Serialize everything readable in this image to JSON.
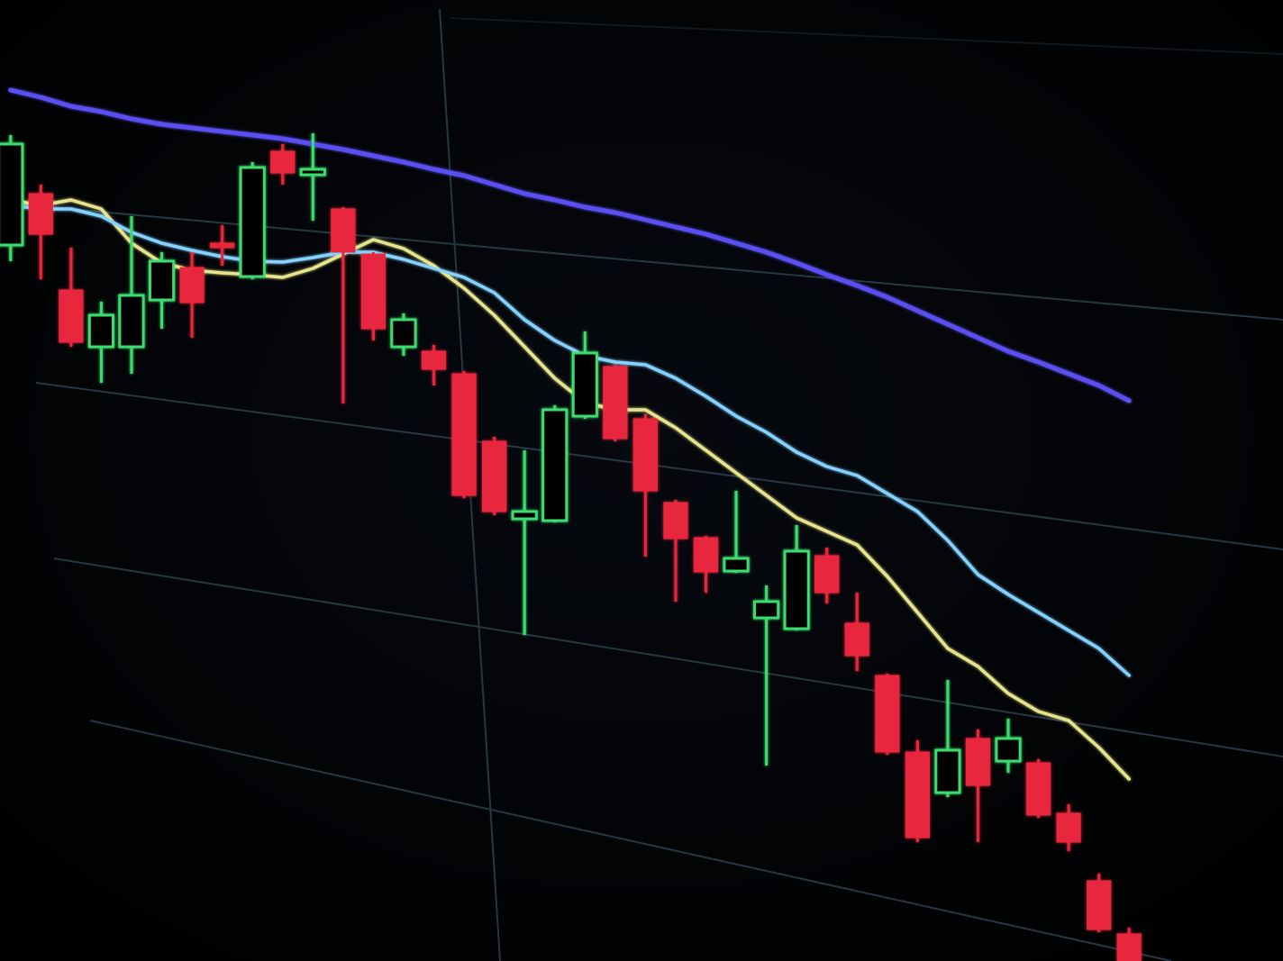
{
  "chart_data": {
    "type": "candlestick",
    "categories": [
      null,
      null,
      null,
      null,
      null,
      null,
      null,
      null,
      null,
      null,
      null,
      null,
      null,
      null,
      null,
      null,
      null,
      null,
      null,
      null,
      null,
      null,
      null,
      null,
      null,
      null,
      null,
      null,
      null,
      null,
      null,
      null,
      null,
      null,
      null,
      null,
      null,
      null
    ],
    "open": [
      795,
      852,
      745,
      682,
      682,
      734,
      770,
      797,
      760,
      899,
      873,
      835,
      785,
      682,
      677,
      652,
      577,
      491,
      489,
      605,
      660,
      602,
      509,
      470,
      433,
      381,
      369,
      450,
      375,
      317,
      232,
      187,
      247,
      222,
      220,
      164,
      89,
      30
    ],
    "high": [
      917,
      862,
      792,
      732,
      827,
      787,
      787,
      817,
      887,
      907,
      919,
      837,
      787,
      719,
      684,
      655,
      582,
      567,
      617,
      699,
      662,
      607,
      512,
      472,
      522,
      417,
      484,
      459,
      409,
      319,
      245,
      312,
      257,
      269,
      224,
      174,
      97,
      37
    ],
    "low": [
      777,
      757,
      682,
      642,
      652,
      702,
      692,
      772,
      757,
      862,
      822,
      619,
      689,
      672,
      639,
      514,
      495,
      362,
      487,
      602,
      577,
      449,
      399,
      409,
      431,
      217,
      367,
      397,
      322,
      229,
      132,
      182,
      132,
      209,
      159,
      122,
      32,
      0
    ],
    "close": [
      907,
      807,
      687,
      717,
      739,
      777,
      731,
      792,
      881,
      875,
      879,
      787,
      702,
      712,
      657,
      517,
      499,
      499,
      612,
      675,
      580,
      522,
      469,
      432,
      447,
      399,
      455,
      409,
      339,
      232,
      137,
      234,
      195,
      247,
      162,
      132,
      35,
      0
    ],
    "up_color": "#3ddc6e",
    "down_color": "#e8283c",
    "series": [
      {
        "color": "#e6e48c",
        "values": [
          845,
          839,
          845,
          835,
          797,
          775,
          767,
          764,
          762,
          759,
          769,
          785,
          801,
          791,
          772,
          747,
          717,
          682,
          647,
          620,
          612,
          612,
          592,
          567,
          542,
          517,
          492,
          477,
          462,
          427,
          387,
          347,
          327,
          297,
          277,
          267,
          237,
          202
        ]
      },
      {
        "color": "#86d2ff",
        "values": [
          839,
          835,
          835,
          827,
          809,
          797,
          789,
          782,
          777,
          776,
          781,
          787,
          787,
          779,
          769,
          759,
          742,
          712,
          689,
          672,
          665,
          662,
          647,
          627,
          605,
          587,
          565,
          549,
          539,
          519,
          499,
          467,
          429,
          407,
          387,
          367,
          347,
          317
        ]
      },
      {
        "color": "#5b4ff2",
        "values": [
          967,
          959,
          949,
          943,
          935,
          929,
          925,
          921,
          917,
          913,
          907,
          901,
          894,
          887,
          879,
          872,
          862,
          852,
          845,
          837,
          831,
          823,
          815,
          807,
          797,
          787,
          775,
          762,
          750,
          737,
          722,
          707,
          692,
          677,
          665,
          652,
          639,
          622
        ]
      }
    ],
    "ylim": [
      0,
      1067
    ],
    "grid": true
  }
}
